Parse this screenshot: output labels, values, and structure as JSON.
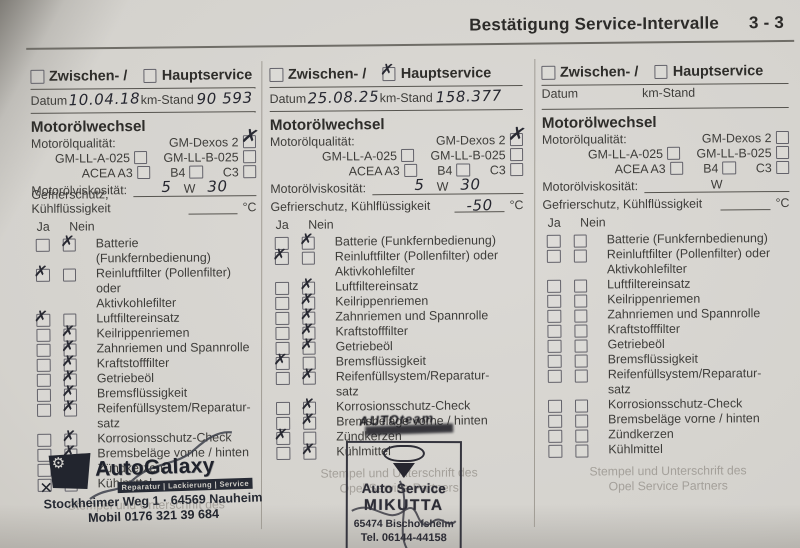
{
  "page": {
    "title": "Bestätigung Service-Intervalle",
    "page_number": "3 - 3"
  },
  "labels": {
    "zwischen": "Zwischen- /",
    "haupt": "Hauptservice",
    "datum": "Datum",
    "km_stand": "km-Stand",
    "oil_section": "Motorölwechsel",
    "oil_quality": "Motorölqualität:",
    "gm_dexos": "GM-Dexos 2",
    "gm_ll_a": "GM-LL-A-025",
    "gm_ll_b": "GM-LL-B-025",
    "acea": "ACEA A3",
    "b4": "B4",
    "c3": "C3",
    "viscosity": "Motorölviskosität:",
    "viscosity_w": "W",
    "frost": "Gefrierschutz, Kühlflüssigkeit",
    "celsius": "°C",
    "ja": "Ja",
    "nein": "Nein",
    "items": [
      "Batterie (Funkfernbedienung)",
      "Reinluftfilter (Pollenfilter) oder\nAktivkohlefilter",
      "Luftfiltereinsatz",
      "Keilrippenriemen",
      "Zahnriemen und Spannrolle",
      "Kraftstofffilter",
      "Getriebeöl",
      "Bremsflüssigkeit",
      "Reifenfüllsystem/Reparatur-\nsatz",
      "Korrosionsschutz-Check",
      "Bremsbeläge vorne / hinten",
      "Zündkerzen",
      "Kühlmittel"
    ],
    "footer_line1": "Stempel und Unterschrift des",
    "footer_line2": "Opel Service Partners"
  },
  "columns": [
    {
      "zwischen_checked": false,
      "haupt_checked": false,
      "datum_value": "10.04.18",
      "km_value": "90 593",
      "dexos_checked": true,
      "viscosity_before": "5",
      "viscosity_after": "30",
      "frost_value": "",
      "show_footer_line2": false,
      "checks": [
        [
          false,
          true
        ],
        [
          true,
          false
        ],
        [
          true,
          false
        ],
        [
          false,
          true
        ],
        [
          false,
          true
        ],
        [
          false,
          true
        ],
        [
          false,
          true
        ],
        [
          false,
          true
        ],
        [
          false,
          true
        ],
        [
          false,
          true
        ],
        [
          false,
          true
        ],
        [
          false,
          true
        ],
        [
          false,
          true
        ]
      ]
    },
    {
      "zwischen_checked": false,
      "haupt_checked": true,
      "datum_value": "25.08.25",
      "km_value": "158.377",
      "dexos_checked": true,
      "viscosity_before": "5",
      "viscosity_after": "30",
      "frost_value": "-50",
      "show_footer_line2": true,
      "checks": [
        [
          false,
          true
        ],
        [
          true,
          false
        ],
        [
          false,
          true
        ],
        [
          false,
          true
        ],
        [
          false,
          true
        ],
        [
          false,
          true
        ],
        [
          false,
          true
        ],
        [
          true,
          false
        ],
        [
          false,
          true
        ],
        [
          false,
          true
        ],
        [
          false,
          true
        ],
        [
          true,
          false
        ],
        [
          false,
          true
        ]
      ]
    },
    {
      "zwischen_checked": false,
      "haupt_checked": false,
      "datum_value": "",
      "km_value": "",
      "dexos_checked": false,
      "viscosity_before": "",
      "viscosity_after": "",
      "frost_value": "",
      "show_footer_line2": true,
      "checks": [
        [
          false,
          false
        ],
        [
          false,
          false
        ],
        [
          false,
          false
        ],
        [
          false,
          false
        ],
        [
          false,
          false
        ],
        [
          false,
          false
        ],
        [
          false,
          false
        ],
        [
          false,
          false
        ],
        [
          false,
          false
        ],
        [
          false,
          false
        ],
        [
          false,
          false
        ],
        [
          false,
          false
        ],
        [
          false,
          false
        ]
      ]
    }
  ],
  "stamps": {
    "autogalaxy": {
      "name": "AutoGalaxy",
      "tagline": "Reparatur | Lackierung | Service",
      "address": "Stockheimer Weg 1 · 64569 Nauheim",
      "phone": "Mobil 0176 321 39 684"
    },
    "mikutta": {
      "line1": "Auto Service",
      "line2": "MIKUTTA",
      "line3": "65474 Bischofsheim",
      "line4": "Tel. 06144-44158"
    },
    "autoteam_smudge": "AUTOteam"
  }
}
